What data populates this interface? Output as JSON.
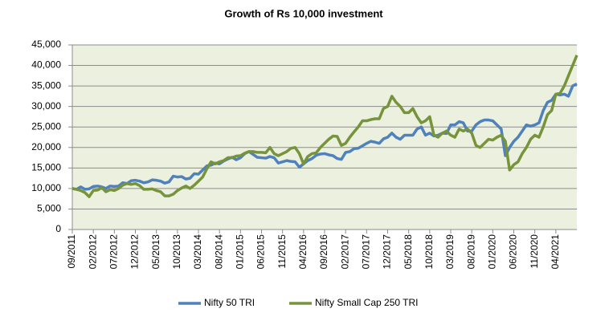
{
  "chart_data": {
    "type": "line",
    "title": "Growth of Rs 10,000 investment",
    "categories": [
      "09/2011",
      null,
      null,
      null,
      null,
      "02/2012",
      null,
      null,
      null,
      null,
      "07/2012",
      null,
      null,
      null,
      null,
      "12/2012",
      null,
      null,
      null,
      null,
      "05/2013",
      null,
      null,
      null,
      null,
      "10/2013",
      null,
      null,
      null,
      null,
      "03/2014",
      null,
      null,
      null,
      null,
      "08/2014",
      null,
      null,
      null,
      null,
      "01/2015",
      null,
      null,
      null,
      null,
      "06/2015",
      null,
      null,
      null,
      null,
      "11/2015",
      null,
      null,
      null,
      null,
      "04/2016",
      null,
      null,
      null,
      null,
      "09/2016",
      null,
      null,
      null,
      null,
      "02/2017",
      null,
      null,
      null,
      null,
      "07/2017",
      null,
      null,
      null,
      null,
      "12/2017",
      null,
      null,
      null,
      null,
      "05/2018",
      null,
      null,
      null,
      null,
      "10/2018",
      null,
      null,
      null,
      null,
      "03/2019",
      null,
      null,
      null,
      null,
      "08/2019",
      null,
      null,
      null,
      null,
      "01/2020",
      null,
      null,
      null,
      null,
      "06/2020",
      null,
      null,
      null,
      null,
      "11/2020",
      null,
      null,
      null,
      null,
      "04/2021",
      null,
      null,
      null,
      null,
      null
    ],
    "series": [
      {
        "name": "Nifty 50 TRI",
        "color": "#4f81bd",
        "values": [
          10000,
          9800,
          10400,
          9800,
          9900,
          10500,
          10600,
          10400,
          10000,
          10600,
          10500,
          10600,
          11400,
          11200,
          11900,
          12000,
          11800,
          11400,
          11600,
          12100,
          12000,
          11800,
          11300,
          11600,
          13000,
          12800,
          12900,
          12300,
          12500,
          13600,
          13500,
          14500,
          15500,
          15700,
          16200,
          16000,
          16700,
          17200,
          17600,
          17000,
          17500,
          18500,
          19000,
          18300,
          17600,
          17500,
          17400,
          17800,
          17500,
          16200,
          16500,
          16800,
          16600,
          16500,
          15200,
          16000,
          16800,
          17300,
          18100,
          18400,
          18500,
          18200,
          18000,
          17300,
          17100,
          18800,
          19000,
          19700,
          19800,
          20400,
          21000,
          21500,
          21300,
          21000,
          22100,
          22500,
          23500,
          22500,
          22000,
          23000,
          23000,
          23000,
          24500,
          25000,
          23000,
          23500,
          22800,
          23000,
          23500,
          23400,
          25500,
          25500,
          26300,
          26000,
          24000,
          24000,
          25500,
          26300,
          26700,
          26700,
          26500,
          25500,
          24500,
          18000,
          20000,
          21500,
          22500,
          24000,
          25500,
          25200,
          25500,
          26000,
          29000,
          31000,
          31500,
          33000,
          32800,
          33000,
          32500,
          35000,
          35500
        ]
      },
      {
        "name": "Nifty Small Cap 250 TRI",
        "color": "#77933c",
        "values": [
          10000,
          9800,
          9500,
          9000,
          8000,
          9500,
          9600,
          10200,
          9200,
          9700,
          9500,
          10000,
          10800,
          11200,
          11000,
          11200,
          10700,
          9800,
          9800,
          9900,
          9500,
          9200,
          8200,
          8200,
          8600,
          9500,
          10100,
          10600,
          10000,
          10800,
          11800,
          12800,
          14800,
          16500,
          16000,
          16500,
          16800,
          17500,
          17500,
          17900,
          18000,
          18600,
          19000,
          19000,
          18800,
          18800,
          18700,
          20000,
          18500,
          18000,
          18500,
          19000,
          19800,
          20000,
          18500,
          16000,
          17800,
          18500,
          18700,
          20000,
          21000,
          22000,
          22800,
          22700,
          20500,
          21000,
          22500,
          23800,
          25000,
          26500,
          26500,
          26800,
          27000,
          27000,
          29500,
          30000,
          32500,
          31000,
          30000,
          28500,
          28500,
          29500,
          27500,
          26000,
          26500,
          27500,
          23000,
          22500,
          23500,
          24000,
          23000,
          22500,
          24500,
          24000,
          24500,
          23500,
          20500,
          20000,
          21000,
          22000,
          21800,
          22500,
          23000,
          21500,
          14500,
          15800,
          16500,
          18500,
          20000,
          22000,
          23000,
          22500,
          25000,
          28000,
          29000,
          33000,
          33200,
          35000,
          37500,
          40000,
          42500
        ]
      }
    ],
    "ylim": [
      0,
      45000
    ],
    "yticks": [
      0,
      {
        "value": 5000,
        "label": "5,000"
      },
      {
        "value": 10000,
        "label": "10,000"
      },
      {
        "value": 15000,
        "label": "15,000"
      },
      {
        "value": 20000,
        "label": "20,000"
      },
      {
        "value": 25000,
        "label": "25,000"
      },
      {
        "value": 30000,
        "label": "30,000"
      },
      {
        "value": 35000,
        "label": "35,000"
      },
      {
        "value": 40000,
        "label": "40,000"
      },
      {
        "value": 45000,
        "label": "45,000"
      }
    ],
    "grid": true,
    "legend": "bottom",
    "plot_background": "#ebf1de"
  }
}
